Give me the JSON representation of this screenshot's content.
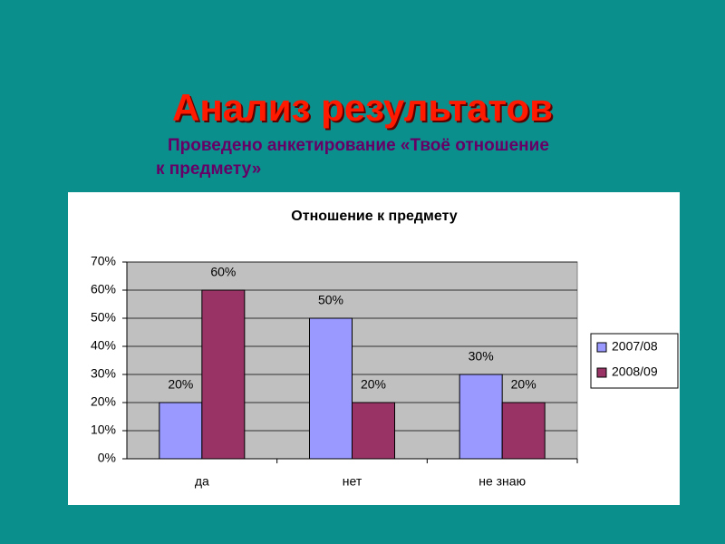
{
  "slide": {
    "title": "Анализ результатов",
    "subtitle_lines": [
      "Проведено анкетирование «Твоё отношение",
      "к предмету»"
    ]
  },
  "chart_data": {
    "type": "bar",
    "title": "Отношение к предмету",
    "categories": [
      "да",
      "нет",
      "не знаю"
    ],
    "series": [
      {
        "name": "2007/08",
        "color": "#9999ff",
        "values": [
          20,
          50,
          30
        ],
        "value_labels": [
          "20%",
          "50%",
          "30%"
        ]
      },
      {
        "name": "2008/09",
        "color": "#993366",
        "values": [
          60,
          20,
          20
        ],
        "value_labels": [
          "60%",
          "20%",
          "20%"
        ]
      }
    ],
    "ylim": [
      0,
      70
    ],
    "yticks": [
      {
        "value": 0,
        "label": "0%"
      },
      {
        "value": 10,
        "label": "10%"
      },
      {
        "value": 20,
        "label": "20%"
      },
      {
        "value": 30,
        "label": "30%"
      },
      {
        "value": 40,
        "label": "40%"
      },
      {
        "value": 50,
        "label": "50%"
      },
      {
        "value": 60,
        "label": "60%"
      },
      {
        "value": 70,
        "label": "70%"
      }
    ],
    "grid": true,
    "legend": "right"
  }
}
